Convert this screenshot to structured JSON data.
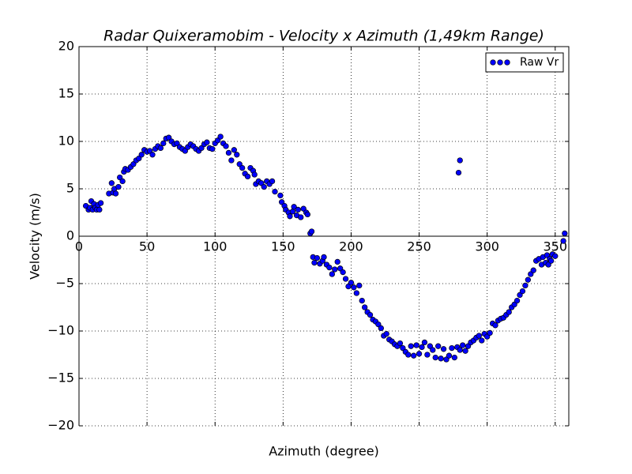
{
  "chart_data": {
    "type": "scatter",
    "title": "Radar Quixeramobim - Velocity x Azimuth (1,49km Range)",
    "x_label": "Azimuth (degree)",
    "y_label": "Velocity (m/s)",
    "xlim": [
      0,
      360
    ],
    "xticks": [
      0,
      50,
      100,
      150,
      200,
      250,
      300,
      350
    ],
    "ylim": [
      -20,
      20
    ],
    "yticks": [
      {
        "value": -20,
        "label": "−20"
      },
      {
        "value": -15,
        "label": "−15"
      },
      {
        "value": -10,
        "label": "−10"
      },
      {
        "value": -5,
        "label": "−5"
      },
      0,
      5,
      10,
      15,
      20
    ],
    "grid": true,
    "legend": "upper right",
    "series": [
      {
        "name": "Raw Vr",
        "color": "#0000ff",
        "x": [
          5,
          7,
          8,
          9,
          10,
          11,
          12,
          13,
          14,
          15,
          16,
          22,
          24,
          25,
          26,
          27,
          29,
          30,
          32,
          33,
          34,
          36,
          38,
          40,
          42,
          44,
          46,
          48,
          50,
          52,
          54,
          56,
          58,
          60,
          62,
          64,
          66,
          68,
          70,
          72,
          74,
          76,
          78,
          80,
          82,
          84,
          86,
          88,
          90,
          92,
          94,
          96,
          98,
          100,
          102,
          104,
          106,
          108,
          110,
          112,
          114,
          116,
          118,
          120,
          122,
          124,
          126,
          128,
          129,
          130,
          132,
          134,
          136,
          138,
          140,
          142,
          144,
          148,
          149,
          151,
          152,
          154,
          155,
          157,
          158,
          160,
          161,
          163,
          165,
          167,
          168,
          170,
          171,
          172,
          173,
          175,
          177,
          179,
          180,
          182,
          184,
          186,
          188,
          190,
          192,
          194,
          196,
          198,
          200,
          202,
          204,
          206,
          208,
          210,
          212,
          214,
          216,
          218,
          220,
          222,
          224,
          226,
          228,
          230,
          232,
          234,
          236,
          238,
          240,
          242,
          244,
          246,
          248,
          250,
          252,
          254,
          256,
          258,
          260,
          262,
          264,
          266,
          268,
          270,
          272,
          274,
          276,
          278,
          280,
          282,
          284,
          286,
          288,
          290,
          292,
          294,
          296,
          298,
          300,
          302,
          304,
          306,
          308,
          310,
          312,
          314,
          316,
          318,
          320,
          322,
          324,
          326,
          328,
          330,
          332,
          334,
          336,
          338,
          340,
          341,
          343,
          344,
          345,
          346,
          347,
          348,
          350,
          356,
          357,
          279,
          280
        ],
        "values": [
          3.2,
          2.8,
          3.0,
          3.7,
          2.8,
          3.4,
          3.0,
          2.8,
          3.3,
          2.8,
          3.5,
          4.5,
          5.6,
          4.6,
          5.0,
          4.5,
          5.2,
          6.2,
          5.8,
          6.8,
          7.1,
          7.0,
          7.3,
          7.6,
          8.0,
          8.2,
          8.6,
          9.1,
          8.9,
          9.0,
          8.6,
          9.2,
          9.5,
          9.3,
          9.8,
          10.3,
          10.4,
          10.0,
          9.7,
          9.8,
          9.4,
          9.2,
          9.0,
          9.4,
          9.7,
          9.5,
          9.2,
          9.0,
          9.3,
          9.7,
          9.9,
          9.3,
          9.2,
          9.8,
          10.1,
          10.5,
          9.8,
          9.5,
          8.8,
          8.0,
          9.1,
          8.6,
          7.6,
          7.2,
          6.6,
          6.3,
          7.2,
          6.9,
          6.5,
          5.5,
          5.8,
          5.6,
          5.2,
          5.8,
          5.5,
          5.8,
          4.7,
          4.3,
          3.6,
          3.2,
          2.8,
          2.5,
          2.1,
          2.6,
          3.1,
          2.2,
          2.8,
          2.0,
          2.9,
          2.5,
          2.3,
          0.3,
          0.5,
          -2.2,
          -2.8,
          -2.3,
          -2.9,
          -2.6,
          -2.2,
          -3.0,
          -3.3,
          -4.0,
          -3.5,
          -2.7,
          -3.4,
          -3.8,
          -4.5,
          -5.3,
          -4.9,
          -5.4,
          -6.0,
          -5.2,
          -6.8,
          -7.5,
          -8.0,
          -8.3,
          -8.8,
          -9.0,
          -9.3,
          -9.7,
          -10.5,
          -10.3,
          -10.9,
          -11.1,
          -11.4,
          -11.6,
          -11.3,
          -11.8,
          -12.2,
          -12.5,
          -11.6,
          -12.6,
          -11.5,
          -12.4,
          -11.7,
          -11.2,
          -12.5,
          -11.6,
          -12.0,
          -12.8,
          -11.6,
          -12.9,
          -11.9,
          -13.0,
          -12.6,
          -11.8,
          -12.8,
          -11.7,
          -12.0,
          -11.5,
          -12.1,
          -11.6,
          -11.2,
          -11.0,
          -10.7,
          -10.5,
          -11.0,
          -10.3,
          -10.6,
          -10.2,
          -9.2,
          -9.4,
          -8.9,
          -8.7,
          -8.6,
          -8.3,
          -8.0,
          -7.5,
          -7.2,
          -6.8,
          -6.2,
          -5.8,
          -5.2,
          -4.6,
          -4.0,
          -3.6,
          -2.6,
          -2.4,
          -3.0,
          -2.2,
          -2.8,
          -2.0,
          -3.0,
          -2.4,
          -2.6,
          -1.9,
          -2.1,
          -0.5,
          0.3,
          6.7,
          8.0
        ]
      }
    ]
  }
}
